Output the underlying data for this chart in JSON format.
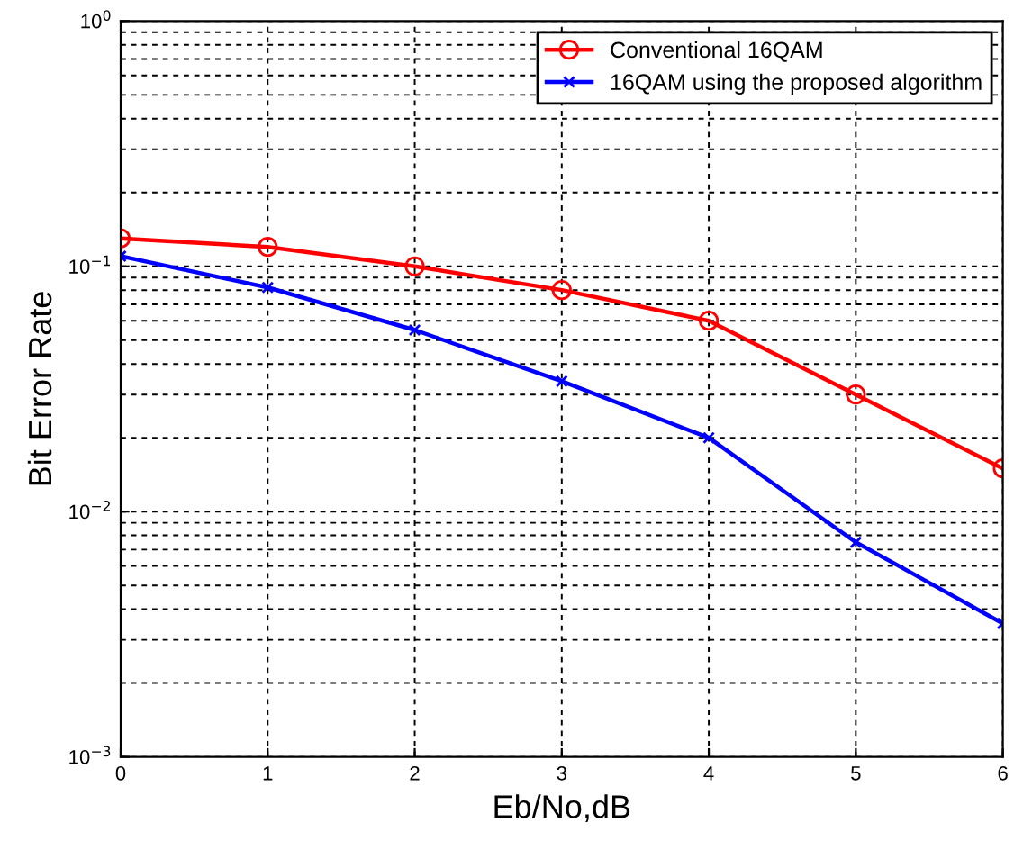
{
  "chart_data": {
    "type": "line",
    "xlabel": "Eb/No,dB",
    "ylabel": "Bit Error Rate",
    "x": [
      0,
      1,
      2,
      3,
      4,
      5,
      6
    ],
    "series": [
      {
        "name": "Conventional 16QAM",
        "color": "#ff0000",
        "marker": "circle",
        "values": [
          0.13,
          0.12,
          0.1,
          0.08,
          0.06,
          0.03,
          0.015
        ]
      },
      {
        "name": "16QAM using the proposed algorithm",
        "color": "#0000ff",
        "marker": "cross",
        "values": [
          0.11,
          0.082,
          0.055,
          0.034,
          0.02,
          0.0075,
          0.0035
        ]
      }
    ],
    "log": "y",
    "xlim": [
      0,
      6
    ],
    "ylim": [
      0.001,
      1
    ],
    "xticks": [
      0,
      1,
      2,
      3,
      4,
      5,
      6
    ],
    "yticks": [
      {
        "value": 0.001,
        "label": "10$^{−3}$"
      },
      {
        "value": 0.01,
        "label": "10$^{−2}$"
      },
      {
        "value": 0.1,
        "label": "10$^{−1}$"
      },
      {
        "value": 1,
        "label": "10$^{0}$"
      }
    ],
    "grid": true,
    "legend": "top right",
    "line_style": "solid"
  }
}
